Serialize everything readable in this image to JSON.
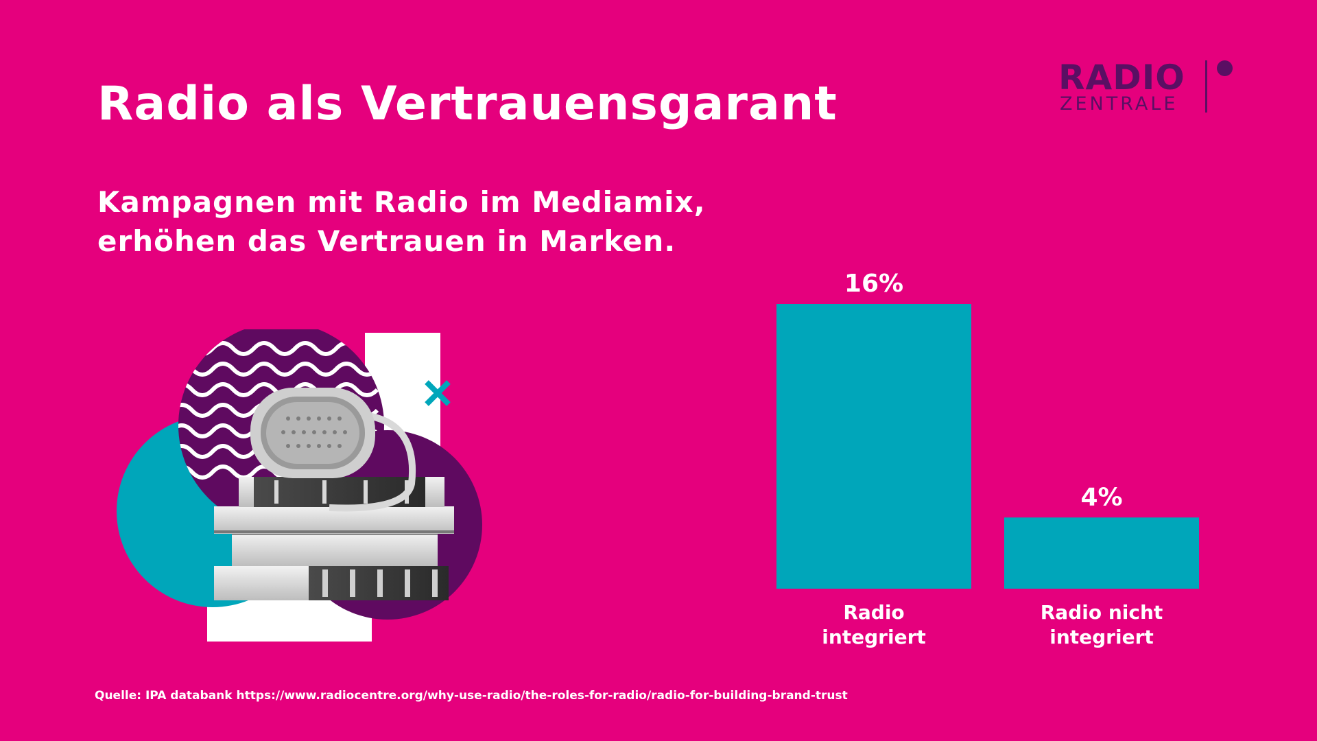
{
  "title": "Radio als Vertrauensgarant",
  "subtitle": {
    "line1": "Kampagnen mit Radio im Mediamix,",
    "line2": "erhöhen das Vertrauen in Marken."
  },
  "logo": {
    "top": "RADIO",
    "bottom": "ZENTRALE"
  },
  "source": "Quelle: IPA databank https://www.radiocentre.org/why-use-radio/the-roles-for-radio/radio-for-building-brand-trust",
  "colors": {
    "background": "#E5007D",
    "bar": "#00A6BA",
    "logo": "#5A0F63",
    "purple": "#5F0A60",
    "teal": "#00A6BA"
  },
  "illustration": {
    "icons": [
      "portable-speaker-icon",
      "book-stack-icon",
      "wave-pattern-icon",
      "cross-icon"
    ]
  },
  "chart_data": {
    "type": "bar",
    "categories": [
      [
        "Radio",
        "integriert"
      ],
      [
        "Radio nicht",
        "integriert"
      ]
    ],
    "values": [
      16,
      4
    ],
    "value_labels": [
      "16%",
      "4%"
    ],
    "unit": "%",
    "ylim": [
      0,
      16
    ],
    "grid": false,
    "legend": "none"
  }
}
